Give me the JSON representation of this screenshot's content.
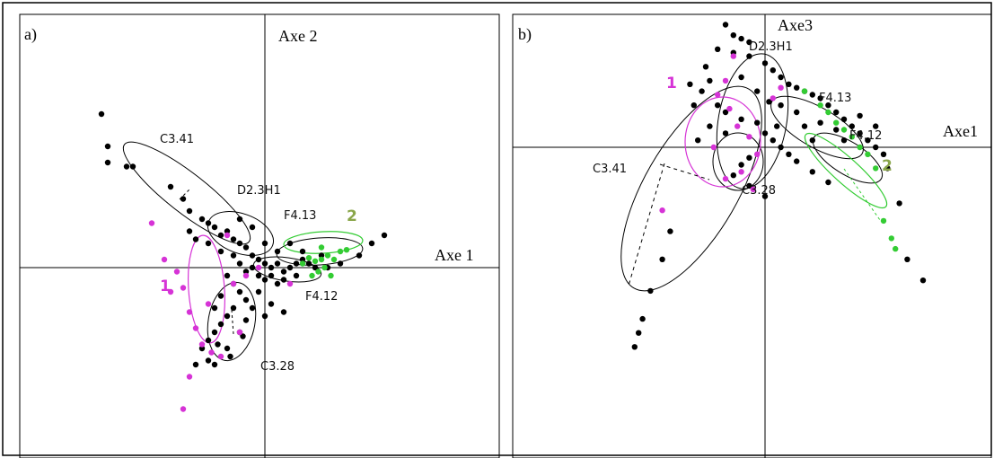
{
  "colors": {
    "other": "#000000",
    "class1": "#d633d6",
    "class2": "#33cc33",
    "class1_label": "#d633d6",
    "class2_label": "#8aa64a"
  },
  "chart_data": [
    {
      "panel_label": "a)",
      "type": "scatter",
      "xlabel": "Axe 1",
      "ylabel": "Axe 2",
      "grid": false,
      "legend": "none",
      "groups": [
        {
          "name": "C3.41",
          "center": [
            -1.35,
            1.0
          ]
        },
        {
          "name": "D2.3H1",
          "center": [
            -0.45,
            0.35
          ]
        },
        {
          "name": "F4.13",
          "center": [
            0.35,
            0.2
          ]
        },
        {
          "name": "F4.12",
          "center": [
            0.25,
            -0.2
          ]
        },
        {
          "name": "C3.28",
          "center": [
            -0.55,
            -0.55
          ]
        }
      ],
      "classes": [
        {
          "name": "1",
          "center": [
            -0.6,
            -0.3
          ]
        },
        {
          "name": "2",
          "center": [
            0.9,
            0.1
          ]
        }
      ],
      "points": {
        "other": [
          [
            -2.6,
            1.9
          ],
          [
            -2.5,
            1.5
          ],
          [
            -2.5,
            1.3
          ],
          [
            -2.2,
            1.25
          ],
          [
            -2.1,
            1.25
          ],
          [
            -1.5,
            1.0
          ],
          [
            -1.3,
            0.85
          ],
          [
            -1.2,
            0.7
          ],
          [
            -1.0,
            0.6
          ],
          [
            -0.9,
            0.55
          ],
          [
            -0.8,
            0.5
          ],
          [
            -0.7,
            0.4
          ],
          [
            -0.6,
            0.45
          ],
          [
            -0.5,
            0.35
          ],
          [
            -0.4,
            0.3
          ],
          [
            -0.3,
            0.25
          ],
          [
            -0.2,
            0.15
          ],
          [
            -0.1,
            0.1
          ],
          [
            0.0,
            0.05
          ],
          [
            0.1,
            0.0
          ],
          [
            0.2,
            0.05
          ],
          [
            0.3,
            -0.05
          ],
          [
            0.4,
            0.0
          ],
          [
            0.5,
            0.05
          ],
          [
            0.6,
            0.1
          ],
          [
            0.7,
            0.05
          ],
          [
            0.8,
            0.0
          ],
          [
            1.0,
            0.0
          ],
          [
            1.2,
            0.05
          ],
          [
            1.5,
            0.15
          ],
          [
            1.7,
            0.3
          ],
          [
            1.9,
            0.4
          ],
          [
            -0.9,
            0.3
          ],
          [
            -0.7,
            0.2
          ],
          [
            -0.5,
            0.15
          ],
          [
            -0.4,
            0.05
          ],
          [
            -0.3,
            -0.05
          ],
          [
            -0.2,
            0.0
          ],
          [
            -0.1,
            -0.1
          ],
          [
            0.0,
            -0.15
          ],
          [
            0.1,
            -0.1
          ],
          [
            0.2,
            -0.2
          ],
          [
            0.3,
            -0.15
          ],
          [
            -0.6,
            -0.1
          ],
          [
            -0.5,
            -0.2
          ],
          [
            -0.4,
            -0.3
          ],
          [
            -0.3,
            -0.4
          ],
          [
            -0.2,
            -0.5
          ],
          [
            -0.5,
            -0.5
          ],
          [
            -0.6,
            -0.6
          ],
          [
            -0.7,
            -0.7
          ],
          [
            -0.8,
            -0.8
          ],
          [
            -0.9,
            -0.9
          ],
          [
            -1.0,
            -1.0
          ],
          [
            -0.9,
            -1.15
          ],
          [
            -0.8,
            -1.2
          ],
          [
            -0.6,
            -1.0
          ],
          [
            -0.4,
            -0.8
          ],
          [
            -0.3,
            -0.65
          ],
          [
            0.1,
            -0.45
          ],
          [
            0.3,
            -0.55
          ],
          [
            -0.1,
            -0.3
          ],
          [
            0.0,
            -0.6
          ],
          [
            -1.2,
            0.45
          ],
          [
            -1.1,
            0.35
          ],
          [
            -0.4,
            0.6
          ],
          [
            -0.2,
            0.5
          ],
          [
            0.0,
            0.3
          ],
          [
            0.4,
            0.3
          ],
          [
            0.6,
            0.2
          ],
          [
            0.9,
            0.15
          ],
          [
            -0.7,
            -0.35
          ],
          [
            -0.8,
            -0.5
          ],
          [
            -0.35,
            -0.85
          ],
          [
            -0.55,
            -1.1
          ],
          [
            -0.75,
            -0.95
          ],
          [
            -1.1,
            -1.2
          ],
          [
            0.2,
            0.2
          ],
          [
            0.5,
            -0.1
          ]
        ],
        "class1": [
          [
            -1.8,
            0.55
          ],
          [
            -1.6,
            0.1
          ],
          [
            -1.4,
            -0.05
          ],
          [
            -1.3,
            -0.25
          ],
          [
            -1.5,
            -0.3
          ],
          [
            -1.2,
            -0.55
          ],
          [
            -1.1,
            -0.75
          ],
          [
            -1.0,
            -0.95
          ],
          [
            -0.85,
            -1.05
          ],
          [
            -0.7,
            -1.1
          ],
          [
            -1.2,
            -1.35
          ],
          [
            -1.3,
            -1.75
          ],
          [
            -0.5,
            -0.2
          ],
          [
            -0.3,
            -0.1
          ],
          [
            -0.1,
            0.0
          ],
          [
            0.4,
            -0.2
          ],
          [
            -0.6,
            0.4
          ],
          [
            -0.9,
            -0.45
          ],
          [
            -0.4,
            -0.8
          ]
        ],
        "class2": [
          [
            0.6,
            0.05
          ],
          [
            0.7,
            0.12
          ],
          [
            0.8,
            0.08
          ],
          [
            0.9,
            0.1
          ],
          [
            1.0,
            0.15
          ],
          [
            1.1,
            0.1
          ],
          [
            1.2,
            0.2
          ],
          [
            1.3,
            0.22
          ],
          [
            0.95,
            0.0
          ],
          [
            0.85,
            -0.05
          ],
          [
            1.05,
            -0.1
          ],
          [
            0.9,
            0.25
          ],
          [
            0.75,
            -0.1
          ]
        ]
      }
    },
    {
      "panel_label": "b)",
      "type": "scatter",
      "xlabel": "Axe1",
      "ylabel": "Axe3",
      "grid": false,
      "legend": "none",
      "groups": [
        {
          "name": "D2.3H1",
          "center": [
            -0.3,
            1.0
          ]
        },
        {
          "name": "F4.13",
          "center": [
            0.6,
            0.55
          ]
        },
        {
          "name": "F4.12",
          "center": [
            0.9,
            0.15
          ]
        },
        {
          "name": "C3.41",
          "center": [
            -1.0,
            -0.5
          ]
        },
        {
          "name": "C3.28",
          "center": [
            -0.3,
            -0.3
          ]
        }
      ],
      "classes": [
        {
          "name": "1",
          "center": [
            -0.4,
            0.4
          ]
        },
        {
          "name": "2",
          "center": [
            1.3,
            -0.4
          ]
        }
      ],
      "points": {
        "other": [
          [
            -0.5,
            1.75
          ],
          [
            -0.4,
            1.6
          ],
          [
            -0.3,
            1.55
          ],
          [
            -0.2,
            1.5
          ],
          [
            -0.6,
            1.4
          ],
          [
            -0.4,
            1.35
          ],
          [
            -0.2,
            1.3
          ],
          [
            0.0,
            1.2
          ],
          [
            0.1,
            1.1
          ],
          [
            0.2,
            1.0
          ],
          [
            0.3,
            0.9
          ],
          [
            0.4,
            0.85
          ],
          [
            0.5,
            0.8
          ],
          [
            0.6,
            0.75
          ],
          [
            0.7,
            0.7
          ],
          [
            0.8,
            0.6
          ],
          [
            0.9,
            0.5
          ],
          [
            1.0,
            0.4
          ],
          [
            1.1,
            0.3
          ],
          [
            1.2,
            0.2
          ],
          [
            1.3,
            0.1
          ],
          [
            1.4,
            0.0
          ],
          [
            1.5,
            -0.1
          ],
          [
            -0.7,
            0.95
          ],
          [
            -0.8,
            0.8
          ],
          [
            -0.9,
            0.6
          ],
          [
            -0.6,
            0.6
          ],
          [
            -0.5,
            0.5
          ],
          [
            -0.3,
            0.4
          ],
          [
            -0.1,
            0.35
          ],
          [
            0.0,
            0.2
          ],
          [
            0.1,
            0.1
          ],
          [
            0.2,
            0.0
          ],
          [
            0.3,
            -0.1
          ],
          [
            0.4,
            -0.2
          ],
          [
            0.6,
            -0.35
          ],
          [
            0.8,
            -0.5
          ],
          [
            -0.2,
            -0.15
          ],
          [
            -0.3,
            -0.25
          ],
          [
            -0.4,
            -0.4
          ],
          [
            -0.2,
            -0.55
          ],
          [
            0.0,
            -0.7
          ],
          [
            -1.2,
            -1.2
          ],
          [
            -1.3,
            -1.6
          ],
          [
            -1.45,
            -2.05
          ],
          [
            -1.55,
            -2.45
          ],
          [
            -1.6,
            -2.65
          ],
          [
            -1.65,
            -2.85
          ],
          [
            1.8,
            -1.6
          ],
          [
            2.0,
            -1.9
          ],
          [
            1.7,
            -0.8
          ],
          [
            0.5,
            0.3
          ],
          [
            0.7,
            0.35
          ],
          [
            0.9,
            0.25
          ],
          [
            1.0,
            0.1
          ],
          [
            0.2,
            0.6
          ],
          [
            0.4,
            0.5
          ],
          [
            -0.1,
            0.8
          ],
          [
            0.05,
            0.65
          ],
          [
            -0.5,
            0.2
          ],
          [
            -0.7,
            0.3
          ],
          [
            -0.85,
            0.1
          ],
          [
            -0.95,
            0.9
          ],
          [
            -0.75,
            1.15
          ],
          [
            -0.3,
            1.0
          ],
          [
            0.15,
            0.3
          ],
          [
            0.6,
            0.1
          ],
          [
            1.2,
            0.45
          ],
          [
            1.4,
            0.3
          ],
          [
            1.55,
            -0.3
          ]
        ],
        "class1": [
          [
            -0.4,
            1.3
          ],
          [
            -0.5,
            0.95
          ],
          [
            -0.6,
            0.75
          ],
          [
            -0.45,
            0.55
          ],
          [
            -0.35,
            0.3
          ],
          [
            -0.2,
            0.15
          ],
          [
            -0.1,
            -0.1
          ],
          [
            -0.3,
            -0.35
          ],
          [
            -0.5,
            -0.45
          ],
          [
            -1.3,
            -0.9
          ],
          [
            -0.15,
            -0.6
          ],
          [
            0.1,
            0.7
          ],
          [
            0.2,
            0.85
          ],
          [
            -0.65,
            0.0
          ]
        ],
        "class2": [
          [
            0.5,
            0.8
          ],
          [
            0.7,
            0.6
          ],
          [
            0.8,
            0.5
          ],
          [
            0.9,
            0.35
          ],
          [
            1.0,
            0.25
          ],
          [
            1.1,
            0.15
          ],
          [
            1.2,
            0.0
          ],
          [
            1.3,
            -0.1
          ],
          [
            1.4,
            -0.3
          ],
          [
            1.5,
            -1.05
          ],
          [
            1.6,
            -1.3
          ],
          [
            1.65,
            -1.45
          ]
        ]
      }
    }
  ]
}
